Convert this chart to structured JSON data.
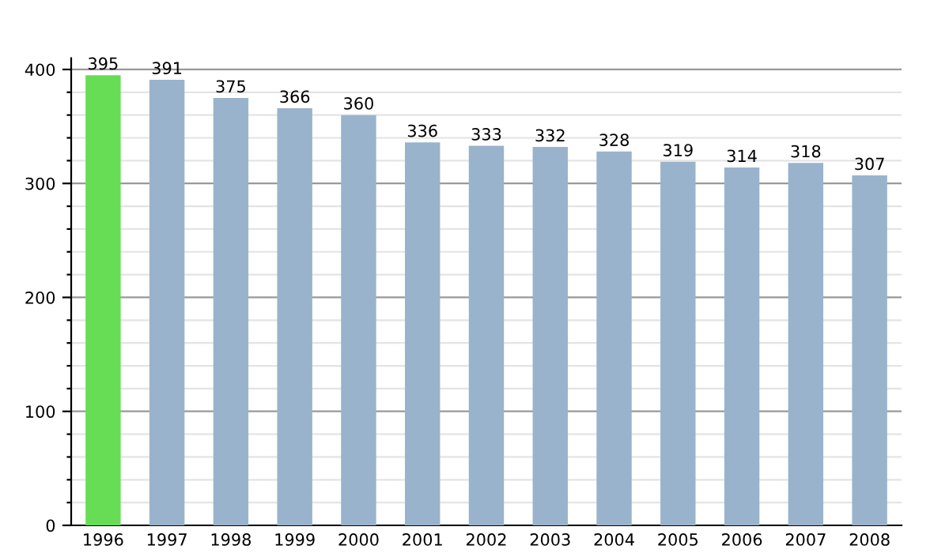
{
  "chart_data": {
    "type": "bar",
    "categories": [
      "1996",
      "1997",
      "1998",
      "1999",
      "2000",
      "2001",
      "2002",
      "2003",
      "2004",
      "2005",
      "2006",
      "2007",
      "2008"
    ],
    "values": [
      395,
      391,
      375,
      366,
      360,
      336,
      333,
      332,
      328,
      319,
      314,
      318,
      307
    ],
    "colors": [
      "#66dd55",
      "#9ab3cc",
      "#9ab3cc",
      "#9ab3cc",
      "#9ab3cc",
      "#9ab3cc",
      "#9ab3cc",
      "#9ab3cc",
      "#9ab3cc",
      "#9ab3cc",
      "#9ab3cc",
      "#9ab3cc",
      "#9ab3cc"
    ],
    "ylim": [
      0,
      410
    ],
    "yticks": [
      0,
      {
        "value": 20,
        "label": null
      },
      {
        "value": 40,
        "label": null
      },
      {
        "value": 60,
        "label": null
      },
      {
        "value": 80,
        "label": null
      },
      100,
      {
        "value": 120,
        "label": null
      },
      {
        "value": 140,
        "label": null
      },
      {
        "value": 160,
        "label": null
      },
      {
        "value": 180,
        "label": null
      },
      200,
      {
        "value": 220,
        "label": null
      },
      {
        "value": 240,
        "label": null
      },
      {
        "value": 260,
        "label": null
      },
      {
        "value": 280,
        "label": null
      },
      300,
      {
        "value": 320,
        "label": null
      },
      {
        "value": 340,
        "label": null
      },
      {
        "value": 360,
        "label": null
      },
      {
        "value": 380,
        "label": null
      },
      400
    ],
    "grid": "y",
    "data_labels": true
  }
}
